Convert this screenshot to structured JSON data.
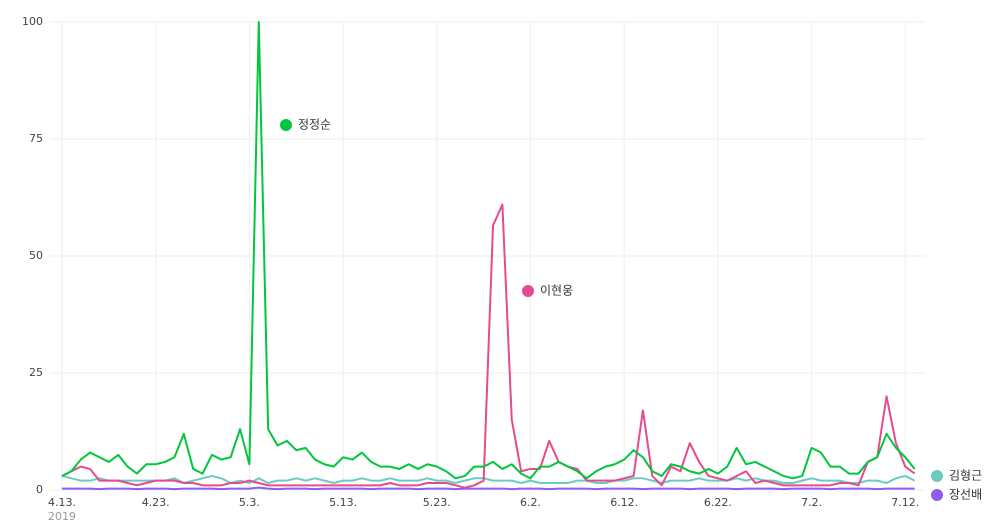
{
  "chart_data": {
    "type": "line",
    "categories": [
      "4.13.",
      null,
      null,
      null,
      null,
      null,
      null,
      null,
      null,
      null,
      "4.23.",
      null,
      null,
      null,
      null,
      null,
      null,
      null,
      null,
      null,
      "5.3.",
      null,
      null,
      null,
      null,
      null,
      null,
      null,
      null,
      null,
      "5.13.",
      null,
      null,
      null,
      null,
      null,
      null,
      null,
      null,
      null,
      "5.23.",
      null,
      null,
      null,
      null,
      null,
      null,
      null,
      null,
      null,
      "6.2.",
      null,
      null,
      null,
      null,
      null,
      null,
      null,
      null,
      null,
      "6.12.",
      null,
      null,
      null,
      null,
      null,
      null,
      null,
      null,
      null,
      "6.22.",
      null,
      null,
      null,
      null,
      null,
      null,
      null,
      null,
      null,
      "7.2.",
      null,
      null,
      null,
      null,
      null,
      null,
      null,
      null,
      null,
      "7.12.",
      null
    ],
    "year_label": "2019",
    "ylim": [
      0,
      100
    ],
    "yticks": [
      0,
      25,
      50,
      75,
      100
    ],
    "grid": true,
    "series": [
      {
        "name": "정정순",
        "color": "#00c73c",
        "values": [
          3,
          4,
          6.5,
          8,
          7,
          6,
          7.5,
          5,
          3.5,
          5.5,
          5.5,
          6,
          7,
          12,
          4.5,
          3.5,
          7.5,
          6.5,
          7,
          13,
          5.5,
          100,
          13,
          9.5,
          10.5,
          8.5,
          9,
          6.5,
          5.5,
          5,
          7,
          6.5,
          8,
          6,
          5,
          5,
          4.5,
          5.5,
          4.5,
          5.5,
          5,
          4,
          2.5,
          3,
          5,
          5,
          6,
          4.5,
          5.5,
          3.5,
          2.5,
          5,
          5,
          6,
          5,
          4,
          2.5,
          4,
          5,
          5.5,
          6.5,
          8.5,
          7,
          4,
          3,
          5.5,
          5,
          4,
          3.5,
          4.5,
          3.5,
          5,
          9,
          5.5,
          6,
          5,
          4,
          3,
          2.5,
          3,
          9,
          8,
          5,
          5,
          3.5,
          3.5,
          6,
          7,
          12,
          9,
          7,
          4.5
        ]
      },
      {
        "name": "이현웅",
        "color": "#e64a8f",
        "values": [
          3,
          4,
          5,
          4.5,
          2,
          2,
          2,
          1.5,
          1,
          1.5,
          2,
          2,
          2,
          1.5,
          1.5,
          1,
          1,
          1,
          1.5,
          1.5,
          2,
          1.5,
          1,
          1,
          1,
          1,
          1,
          1,
          1,
          1,
          1,
          1,
          1,
          1,
          1,
          1.5,
          1,
          1,
          1,
          1.5,
          1.5,
          1.5,
          1,
          0.5,
          1,
          2,
          56.5,
          61,
          15,
          4,
          4.5,
          4.5,
          10.5,
          6,
          5,
          4.5,
          2,
          2,
          2,
          2,
          2.5,
          3,
          17,
          3,
          1,
          5,
          4,
          10,
          6,
          3,
          2.5,
          2,
          3,
          4,
          1.5,
          2,
          1.5,
          1,
          1,
          1,
          1,
          1,
          1,
          1.5,
          1.5,
          1,
          6,
          7,
          20,
          10,
          5,
          3.5
        ]
      },
      {
        "name": "김형근",
        "color": "#6ccbbe",
        "values": [
          3,
          2.5,
          2,
          2,
          2.5,
          2,
          2,
          2,
          2,
          2,
          2,
          2,
          2.5,
          1.5,
          2,
          2.5,
          3,
          2.5,
          1.5,
          2,
          1.5,
          2.5,
          1.5,
          2,
          2,
          2.5,
          2,
          2.5,
          2,
          1.5,
          2,
          2,
          2.5,
          2,
          2,
          2.5,
          2,
          2,
          2,
          2.5,
          2,
          2,
          1.5,
          2,
          2.5,
          2.5,
          2,
          2,
          2,
          1.5,
          2,
          1.5,
          1.5,
          1.5,
          1.5,
          2,
          2,
          1.5,
          1.5,
          2,
          2,
          2.5,
          2.5,
          2,
          1.5,
          2,
          2,
          2,
          2.5,
          2,
          2,
          2,
          2.5,
          2,
          2.5,
          2,
          2,
          1.5,
          1.5,
          2,
          2.5,
          2,
          2,
          2,
          1.5,
          1.5,
          2,
          2,
          1.5,
          2.5,
          3,
          2
        ]
      },
      {
        "name": "장선배",
        "color": "#8e5cf0",
        "values": [
          0.3,
          0.3,
          0.3,
          0.3,
          0.2,
          0.3,
          0.3,
          0.3,
          0.2,
          0.3,
          0.3,
          0.3,
          0.2,
          0.3,
          0.3,
          0.3,
          0.3,
          0.2,
          0.3,
          0.3,
          0.3,
          0.5,
          0.3,
          0.2,
          0.3,
          0.3,
          0.3,
          0.2,
          0.3,
          0.3,
          0.3,
          0.3,
          0.3,
          0.2,
          0.3,
          0.3,
          0.3,
          0.3,
          0.2,
          0.3,
          0.3,
          0.3,
          0.2,
          0.3,
          0.3,
          0.3,
          0.3,
          0.3,
          0.2,
          0.3,
          0.3,
          0.3,
          0.2,
          0.3,
          0.3,
          0.3,
          0.3,
          0.2,
          0.3,
          0.3,
          0.3,
          0.3,
          0.2,
          0.3,
          0.3,
          0.3,
          0.3,
          0.2,
          0.3,
          0.3,
          0.3,
          0.3,
          0.2,
          0.3,
          0.3,
          0.3,
          0.3,
          0.2,
          0.3,
          0.3,
          0.3,
          0.3,
          0.2,
          0.3,
          0.3,
          0.3,
          0.3,
          0.2,
          0.3,
          0.3,
          0.3,
          0.3
        ]
      }
    ]
  }
}
